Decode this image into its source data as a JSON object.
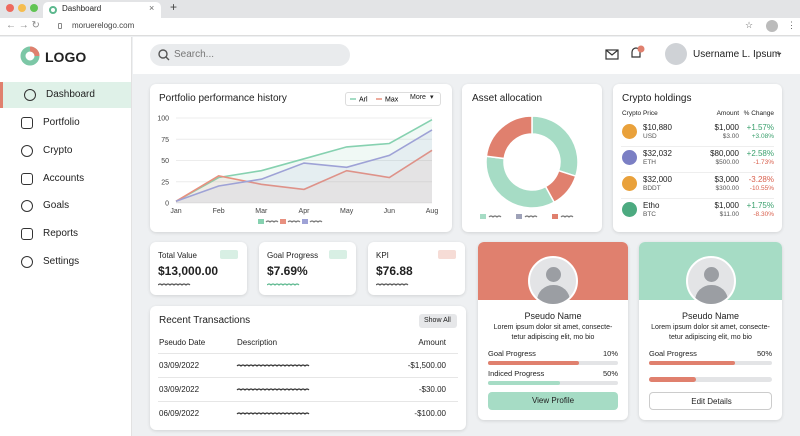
{
  "browser": {
    "tab": "Dashboard",
    "url": "moruerelogo.com"
  },
  "sidebar": {
    "logo": "LOGO",
    "nav": [
      "Dashboard",
      "Portfolio",
      "Crypto",
      "Accounts",
      "Goals",
      "Reports",
      "Settings"
    ]
  },
  "topbar": {
    "search": "Search...",
    "user": "Username L. Ipsum"
  },
  "portfolio_chart": {
    "type": "line",
    "title": "Portfolio performance history",
    "dropdown": "More",
    "categories": [
      "Jan",
      "Feb",
      "Mar",
      "Apr",
      "May",
      "Jun",
      "Aug"
    ],
    "series": [
      {
        "name": "Arl",
        "color": "#86d1b0",
        "values": [
          2,
          30,
          38,
          52,
          66,
          70,
          98
        ]
      },
      {
        "name": "Max",
        "color": "#e8907f",
        "values": [
          2,
          32,
          22,
          16,
          38,
          30,
          62
        ]
      },
      {
        "color": "#9ea2d6",
        "values": [
          2,
          20,
          28,
          47,
          42,
          56,
          86
        ]
      }
    ],
    "ylim": [
      0,
      100
    ],
    "yticks": [
      0,
      25,
      50,
      75,
      100
    ]
  },
  "asset_allocation": {
    "type": "pie",
    "title": "Asset allocation",
    "values": [
      30,
      12,
      35,
      23
    ],
    "colors": [
      "#a6dcc5",
      "#e0806e",
      "#a6dcc5",
      "#e0806e"
    ]
  },
  "crypto": {
    "title": "Crypto holdings",
    "headers": [
      "Crypto Price",
      "Amount",
      "% Change"
    ],
    "rows": [
      {
        "price": "$10,880",
        "unit": "USD",
        "amount": "$1,000",
        "sub": "$3.00",
        "change": "+1.57%",
        "change2": "+3.08%",
        "icon": "#e9a13b"
      },
      {
        "price": "$32,032",
        "unit": "ETH",
        "amount": "$80,000",
        "sub": "$500.00",
        "change": "+2.58%",
        "change2": "-1.73%",
        "icon": "#7b7fc4"
      },
      {
        "price": "$32,000",
        "unit": "BDDT",
        "amount": "$3,000",
        "sub": "$300.00",
        "change": "-3.28%",
        "change2": "-10.55%",
        "icon": "#e9a13b"
      },
      {
        "price": "Etho",
        "unit": "BTC",
        "amount": "$1,000",
        "sub": "$11.00",
        "change": "+1.75%",
        "change2": "-8.30%",
        "icon": "#4caa80"
      }
    ]
  },
  "kpis": [
    {
      "label": "Total Value",
      "value": "$13,000.00"
    },
    {
      "label": "Goal Progress",
      "value": "$7.69%"
    },
    {
      "label": "KPI",
      "value": "$76.88"
    }
  ],
  "transactions": {
    "title": "Recent Transactions",
    "button": "Show All",
    "headers": [
      "Pseudo Date",
      "Description",
      "Amount"
    ],
    "rows": [
      {
        "date": "03/09/2022",
        "amount": "-$1,500.00"
      },
      {
        "date": "03/09/2022",
        "amount": "-$30.00"
      },
      {
        "date": "06/09/2022",
        "amount": "-$100.00"
      }
    ]
  },
  "profiles": [
    {
      "name": "Pseudo Name",
      "bio": [
        "Lorem ipsum dolor sit amet, consecte-",
        "tetur adipiscing elit, mo bio"
      ],
      "metrics": [
        {
          "label": "Goal Progress",
          "value": "10%"
        },
        {
          "label": "Indiced Progress",
          "value": "50%"
        }
      ],
      "button": "View Profile"
    },
    {
      "name": "Pseudo Name",
      "bio": [
        "Lorem ipsum dolor sit amet, consecte-",
        "tetur adipiscing elit, mo bio"
      ],
      "metrics": [
        {
          "label": "Goal Progress",
          "value": "50%"
        }
      ],
      "button": "Edit Details"
    }
  ]
}
